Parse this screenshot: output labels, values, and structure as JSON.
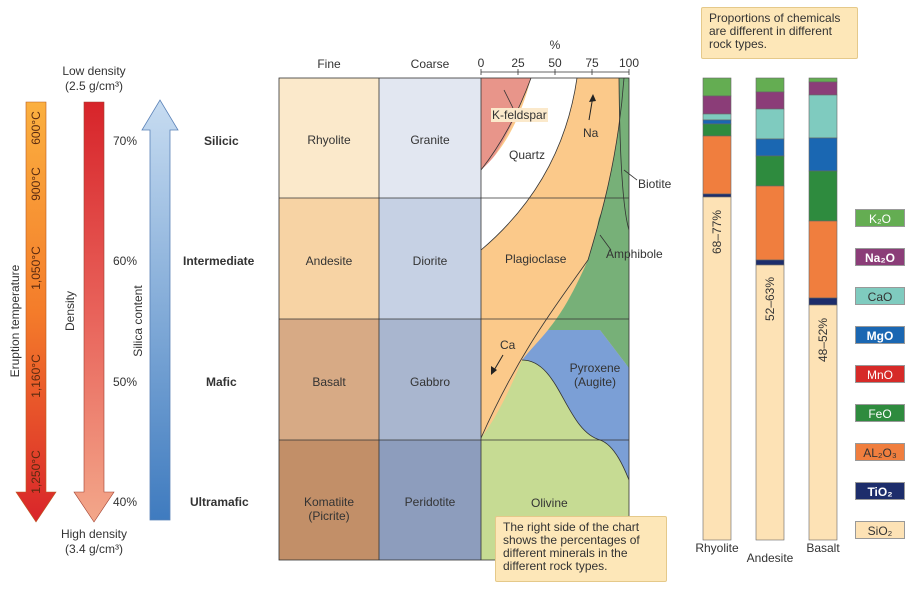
{
  "header": {
    "percent_label": "%",
    "fine": "Fine",
    "coarse": "Coarse",
    "ticks": [
      "0",
      "25",
      "50",
      "75",
      "100"
    ]
  },
  "density": {
    "low": "Low density",
    "low_val": "(2.5 g/cm³)",
    "high": "High density",
    "high_val": "(3.4 g/cm³)",
    "label": "Density"
  },
  "temperature": {
    "label": "Eruption temperature",
    "marks": [
      "600°C",
      "900°C",
      "1,050°C",
      "1,160°C",
      "1,250°C"
    ]
  },
  "silica": {
    "label": "Silica content",
    "marks": [
      "70%",
      "60%",
      "50%",
      "40%"
    ]
  },
  "rows": [
    {
      "type": "Silicic",
      "fine": "Rhyolite",
      "coarse": "Granite"
    },
    {
      "type": "Intermediate",
      "fine": "Andesite",
      "coarse": "Diorite"
    },
    {
      "type": "Mafic",
      "fine": "Basalt",
      "coarse": "Gabbro"
    },
    {
      "type": "Ultramafic",
      "fine": "Komatiite (Picrite)",
      "coarse": "Peridotite"
    }
  ],
  "minerals": {
    "kfeldspar": "K-feldspar",
    "quartz": "Quartz",
    "na": "Na",
    "biotite": "Biotite",
    "plagioclase": "Plagioclase",
    "amphibole": "Amphibole",
    "ca": "Ca",
    "pyroxene": "Pyroxene (Augite)",
    "olivine": "Olivine"
  },
  "notes": {
    "minerals_note": "The right side of the chart shows the percentages of different minerals in the different rock types.",
    "chem_note": "Proportions of chemicals are different in different rock types."
  },
  "bars": [
    {
      "name": "Rhyolite",
      "sio2_label": "68–77%"
    },
    {
      "name": "Andesite",
      "sio2_label": "52–63%"
    },
    {
      "name": "Basalt",
      "sio2_label": "48–52%"
    }
  ],
  "legend": [
    {
      "label": "K₂O",
      "color": "#64ad52"
    },
    {
      "label": "Na₂O",
      "color": "#8b3d78"
    },
    {
      "label": "CaO",
      "color": "#7fcbbf"
    },
    {
      "label": "MgO",
      "color": "#1a67b2"
    },
    {
      "label": "MnO",
      "color": "#d62a28"
    },
    {
      "label": "FeO",
      "color": "#2e8b3e"
    },
    {
      "label": "AL₂O₃",
      "color": "#f07e3e"
    },
    {
      "label": "TiO₂",
      "color": "#1d2d6b"
    },
    {
      "label": "SiO₂",
      "color": "#fde2b5"
    }
  ]
}
